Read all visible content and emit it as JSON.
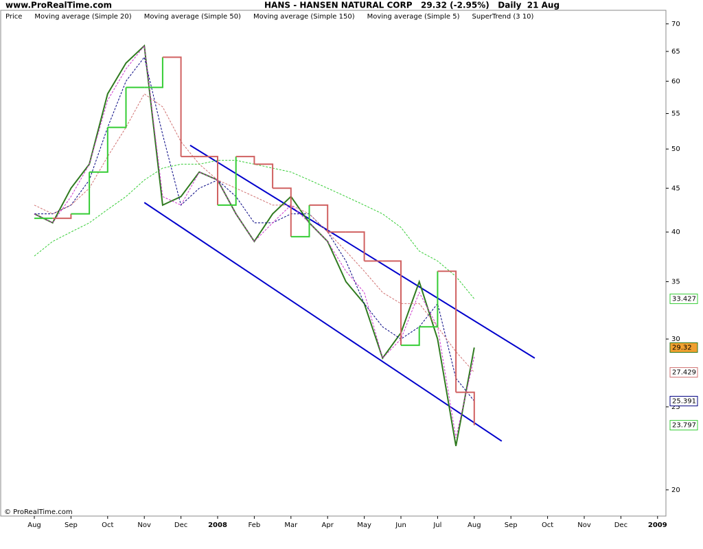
{
  "chart_data": {
    "type": "line",
    "site": "www.ProRealTime.com",
    "title": "HANS - HANSEN NATURAL CORP   29.32 (-2.95%)   Daily  21 Aug",
    "footer": "© ProRealTime.com",
    "log_scale": true,
    "categories": [
      "Aug",
      null,
      "Sep",
      null,
      "Oct",
      null,
      "Nov",
      null,
      "Dec",
      null,
      "2008",
      null,
      "Feb",
      null,
      "Mar",
      null,
      "Apr",
      null,
      "May",
      null,
      "Jun",
      null,
      "Jul",
      null,
      "Aug",
      null,
      "Sep",
      null,
      "Oct",
      null,
      "Nov",
      null,
      "Dec",
      null,
      "2009"
    ],
    "ylim": [
      18.64,
      72.6
    ],
    "yticks": [
      20,
      25,
      30,
      35,
      40,
      45,
      50,
      55,
      60,
      65,
      70
    ],
    "series": [
      {
        "name": "Price",
        "color": "#2f7a1f",
        "style": "solid",
        "tag": true,
        "values": [
          42,
          41,
          45,
          48,
          58,
          63,
          66,
          43,
          44,
          47,
          46,
          42,
          39,
          42,
          44,
          41,
          39,
          35,
          33,
          28.5,
          30.5,
          35,
          30,
          22.5,
          29.32,
          null,
          null,
          null,
          null,
          null,
          null,
          null,
          null,
          null,
          null
        ]
      },
      {
        "name": "Moving average (Simple 20)",
        "color": "#000080",
        "style": "dashed",
        "tag": true,
        "values": [
          42,
          42,
          43,
          46,
          53,
          60,
          64,
          52,
          43,
          45,
          46,
          44,
          41,
          41,
          42,
          42,
          40,
          37,
          33,
          31,
          30,
          31,
          33,
          27,
          25.391,
          null,
          null,
          null,
          null,
          null,
          null,
          null,
          null,
          null,
          null
        ]
      },
      {
        "name": "Moving average (Simple 50)",
        "color": "#d07070",
        "style": "dashed",
        "tag": true,
        "values": [
          43,
          42,
          43,
          45,
          49,
          53,
          58,
          56,
          51,
          48,
          46,
          45,
          44,
          43,
          43,
          42,
          40,
          38,
          36,
          34,
          33,
          33,
          31,
          29,
          27.429,
          null,
          null,
          null,
          null,
          null,
          null,
          null,
          null,
          null,
          null
        ]
      },
      {
        "name": "Moving average (Simple 150)",
        "color": "#33cc33",
        "style": "dashed",
        "tag": true,
        "values": [
          37.5,
          39,
          40,
          41,
          42.5,
          44,
          46,
          47.5,
          48,
          48,
          48.5,
          48.5,
          48,
          47.5,
          47,
          46,
          45,
          44,
          43,
          42,
          40.5,
          38,
          37,
          35.5,
          33.427,
          null,
          null,
          null,
          null,
          null,
          null,
          null,
          null,
          null,
          null
        ]
      },
      {
        "name": "Moving average (Simple 5)",
        "color": "#cc33cc",
        "style": "dashed",
        "tag": false,
        "values": [
          42,
          41,
          44,
          48,
          57,
          62,
          66,
          44,
          43,
          47,
          46,
          42,
          39,
          41,
          43,
          41,
          39,
          36,
          34,
          28.5,
          30,
          34,
          31,
          23,
          28.6,
          null,
          null,
          null,
          null,
          null,
          null,
          null,
          null,
          null,
          null
        ]
      },
      {
        "name": "SuperTrend (3 10)",
        "color": "#33cc33",
        "down_color": "#d06060",
        "style": "step",
        "tag": true,
        "values": [
          41.5,
          41.5,
          42,
          47,
          53,
          59,
          59,
          64,
          49,
          49,
          43,
          49,
          48,
          45,
          39.5,
          43,
          40,
          40,
          37,
          37,
          29.5,
          31,
          36,
          26,
          23.797,
          null,
          null,
          null,
          null,
          null,
          null,
          null,
          null,
          null,
          null
        ]
      }
    ],
    "trendlines": [
      {
        "color": "#0000cc",
        "from": [
          8.5,
          50.5
        ],
        "to": [
          27.3,
          28.5
        ]
      },
      {
        "color": "#0000cc",
        "from": [
          6,
          43.3
        ],
        "to": [
          25.5,
          22.8
        ]
      }
    ]
  }
}
